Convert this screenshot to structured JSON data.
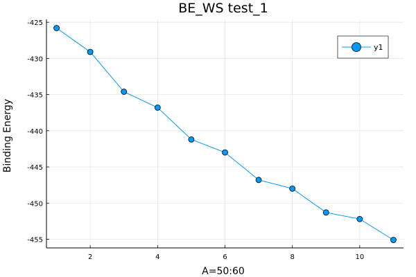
{
  "chart_data": {
    "type": "line",
    "title": "BE_WS test_1",
    "xlabel": "A=50:60",
    "ylabel": "Binding Energy",
    "x": [
      1,
      2,
      3,
      4,
      5,
      6,
      7,
      8,
      9,
      10,
      11
    ],
    "series": [
      {
        "name": "y1",
        "values": [
          -425.8,
          -429.1,
          -434.6,
          -436.8,
          -441.2,
          -443.0,
          -446.8,
          -448.0,
          -451.3,
          -452.2,
          -455.1
        ],
        "color": "#009af9"
      }
    ],
    "xlim": [
      0.7,
      11.3
    ],
    "ylim": [
      -456.2,
      -424.6
    ],
    "xticks": [
      2,
      4,
      6,
      8,
      10
    ],
    "yticks": [
      -425,
      -430,
      -435,
      -440,
      -445,
      -450,
      -455
    ],
    "grid": true,
    "legend": "top-right",
    "markers": true
  }
}
